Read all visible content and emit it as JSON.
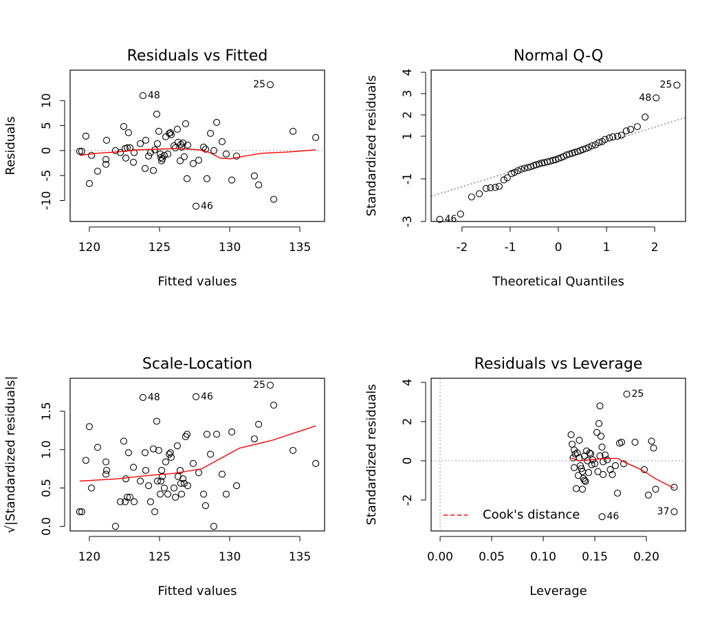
{
  "chart_data": [
    {
      "type": "scatter",
      "title": "Residuals vs Fitted",
      "x_label": "Fitted values",
      "y_label": "Residuals",
      "xlim": [
        118.63,
        136.76
      ],
      "ylim": [
        -14.2,
        16.1
      ],
      "xticks": [
        120,
        125,
        130,
        135
      ],
      "yticks": [
        -10,
        -5,
        0,
        5,
        10
      ],
      "marker_color": "#000000",
      "series": [
        {
          "x": [
            119.31,
            119.46,
            119.75,
            120.0,
            120.15,
            120.59,
            121.18,
            121.18,
            121.23,
            121.86,
            122.21,
            122.45,
            122.55,
            122.6,
            122.7,
            122.79,
            122.89,
            123.14,
            123.19,
            123.63,
            124.02,
            123.97,
            124.22,
            124.36,
            124.56,
            124.66,
            124.8,
            124.85,
            124.95,
            125.05,
            125.1,
            125.15,
            125.2,
            125.34,
            125.44,
            125.59,
            125.69,
            125.78,
            125.83,
            126.03,
            126.13,
            126.27,
            126.32,
            126.47,
            126.52,
            126.57,
            126.67,
            126.76,
            126.86,
            126.96,
            127.01,
            127.4,
            127.79,
            128.14,
            128.28,
            128.38,
            128.63,
            128.87,
            129.07,
            129.46,
            129.75,
            130.15,
            130.49,
            131.76,
            132.06,
            133.14,
            134.51,
            136.13
          ],
          "values": [
            -0.14,
            -0.14,
            2.89,
            -6.6,
            -0.96,
            -4.13,
            -2.75,
            -1.79,
            2.06,
            0.0,
            -0.41,
            4.81,
            0.41,
            -1.51,
            0.55,
            3.58,
            0.55,
            -2.34,
            -0.41,
            1.38,
            2.06,
            -3.58,
            -1.1,
            -0.41,
            -3.99,
            0.14,
            7.29,
            1.38,
            3.85,
            -0.69,
            -1.38,
            -2.06,
            -1.65,
            -0.96,
            2.75,
            -0.69,
            3.44,
            3.58,
            3.16,
            0.96,
            0.55,
            4.26,
            1.65,
            -2.06,
            1.24,
            0.69,
            1.51,
            -1.24,
            5.36,
            -5.64,
            1.1,
            -2.61,
            -1.93,
            0.69,
            0.28,
            -5.64,
            3.44,
            0.0,
            5.64,
            1.79,
            -0.69,
            -5.91,
            -1.1,
            -5.09,
            -6.88,
            -9.76,
            3.85,
            2.61
          ]
        },
        {
          "x": [
            123.82,
            132.89,
            127.6
          ],
          "values": [
            11.0,
            13.2,
            -11.14
          ],
          "labels": [
            "48",
            "25",
            "46"
          ]
        }
      ],
      "smooth": {
        "color": "#ff0000",
        "x": [
          119.31,
          120.49,
          121.96,
          123.43,
          124.9,
          126.37,
          127.84,
          128.58,
          129.31,
          130.05,
          130.78,
          132.25,
          134.22,
          136.13
        ],
        "values": [
          -0.96,
          -0.55,
          -0.28,
          0.14,
          0.28,
          0.41,
          0.14,
          -0.41,
          -1.51,
          -1.65,
          -1.24,
          -0.55,
          -0.28,
          0.14
        ]
      },
      "ref_lines": {
        "h": [
          0
        ]
      }
    },
    {
      "type": "scatter",
      "title": "Normal Q-Q",
      "x_label": "Theoretical Quantiles",
      "y_label": "Standardized residuals",
      "xlim": [
        -2.64,
        2.64
      ],
      "ylim": [
        -3.0,
        4.1
      ],
      "xticks": [
        -2,
        -1,
        0,
        1,
        2
      ],
      "yticks": [
        -3,
        -1,
        1,
        2,
        3,
        4
      ],
      "marker_color": "#000000",
      "series": [
        {
          "x": [
            -2.03,
            -1.8,
            -1.64,
            -1.5,
            -1.41,
            -1.31,
            -1.23,
            -1.13,
            -1.06,
            -0.97,
            -0.91,
            -0.84,
            -0.77,
            -0.7,
            -0.63,
            -0.57,
            -0.51,
            -0.46,
            -0.4,
            -0.34,
            -0.29,
            -0.23,
            -0.17,
            -0.11,
            -0.06,
            0.0,
            0.06,
            0.11,
            0.17,
            0.23,
            0.29,
            0.34,
            0.4,
            0.46,
            0.51,
            0.57,
            0.63,
            0.7,
            0.77,
            0.84,
            0.91,
            0.97,
            1.06,
            1.13,
            1.23,
            1.31,
            1.41,
            1.5,
            1.64,
            1.8
          ],
          "values": [
            -2.65,
            -1.85,
            -1.7,
            -1.45,
            -1.42,
            -1.4,
            -1.35,
            -1.05,
            -0.95,
            -0.75,
            -0.7,
            -0.62,
            -0.55,
            -0.5,
            -0.47,
            -0.43,
            -0.38,
            -0.34,
            -0.3,
            -0.26,
            -0.24,
            -0.2,
            -0.17,
            -0.13,
            -0.1,
            -0.05,
            0.0,
            0.05,
            0.12,
            0.16,
            0.2,
            0.24,
            0.28,
            0.33,
            0.38,
            0.42,
            0.48,
            0.55,
            0.6,
            0.7,
            0.75,
            0.85,
            0.92,
            0.97,
            1.0,
            1.05,
            1.25,
            1.32,
            1.45,
            1.9
          ]
        },
        {
          "x": [
            -2.46,
            2.03,
            2.46
          ],
          "values": [
            -2.9,
            2.8,
            3.4
          ],
          "labels": [
            "46",
            "48",
            "25"
          ]
        }
      ],
      "ref_line": {
        "intercept": 0.03,
        "slope": 0.7
      }
    },
    {
      "type": "scatter",
      "title": "Scale-Location",
      "x_label": "Fitted values",
      "y_label": "√|Standardized residuals|",
      "xlim": [
        118.63,
        136.76
      ],
      "ylim": [
        -0.06,
        1.93
      ],
      "xticks": [
        120,
        125,
        130,
        135
      ],
      "yticks": [
        {
          "value": 0,
          "label": "0.0"
        },
        0.5,
        {
          "value": 1,
          "label": "1.0"
        },
        1.5
      ],
      "marker_color": "#000000",
      "series": [
        {
          "x": [
            119.31,
            119.46,
            119.75,
            120.0,
            120.15,
            120.59,
            121.18,
            121.18,
            121.23,
            121.86,
            122.21,
            122.45,
            122.55,
            122.6,
            122.7,
            122.79,
            122.89,
            123.14,
            123.19,
            123.63,
            124.02,
            123.97,
            124.22,
            124.36,
            124.56,
            124.66,
            124.8,
            124.85,
            124.95,
            125.05,
            125.1,
            125.15,
            125.2,
            125.34,
            125.44,
            125.59,
            125.69,
            125.78,
            125.83,
            126.03,
            126.13,
            126.27,
            126.32,
            126.47,
            126.52,
            126.57,
            126.67,
            126.76,
            126.86,
            126.96,
            127.01,
            127.4,
            127.79,
            128.14,
            128.28,
            128.38,
            128.63,
            128.87,
            129.07,
            129.46,
            129.75,
            130.15,
            130.49,
            131.76,
            132.06,
            133.14,
            134.51,
            136.13
          ],
          "values": [
            0.19,
            0.19,
            0.86,
            1.3,
            0.5,
            1.03,
            0.84,
            0.68,
            0.73,
            0.0,
            0.32,
            1.11,
            0.32,
            0.62,
            0.38,
            0.96,
            0.38,
            0.77,
            0.32,
            0.59,
            0.73,
            0.96,
            0.53,
            0.32,
            1.01,
            0.19,
            1.37,
            0.59,
            0.99,
            0.42,
            0.59,
            0.73,
            0.65,
            0.5,
            0.84,
            0.42,
            0.94,
            0.96,
            0.9,
            0.5,
            0.38,
            1.05,
            0.65,
            0.73,
            0.56,
            0.42,
            0.62,
            0.56,
            1.17,
            1.2,
            0.53,
            0.82,
            0.7,
            0.42,
            0.27,
            1.2,
            0.94,
            0.0,
            1.2,
            0.68,
            0.42,
            1.23,
            0.53,
            1.14,
            1.33,
            1.58,
            0.99,
            0.82
          ]
        },
        {
          "x": [
            123.82,
            132.89,
            127.6
          ],
          "values": [
            1.68,
            1.84,
            1.69
          ],
          "labels": [
            "48",
            "25",
            "46"
          ]
        }
      ],
      "smooth": {
        "color": "#ff0000",
        "x": [
          119.31,
          122,
          124,
          126,
          128,
          129.5,
          130.7,
          133,
          136.13
        ],
        "values": [
          0.59,
          0.62,
          0.66,
          0.69,
          0.75,
          0.9,
          1.02,
          1.12,
          1.31
        ]
      }
    },
    {
      "type": "scatter",
      "title": "Residuals vs Leverage",
      "x_label": "Leverage",
      "y_label": "Standardized residuals",
      "xlim": [
        -0.0087,
        0.238
      ],
      "ylim": [
        -3.58,
        4.21
      ],
      "xticks": [
        {
          "value": 0,
          "label": "0.00"
        },
        0.05,
        {
          "value": 0.1,
          "label": "0.10"
        },
        0.15,
        {
          "value": 0.2,
          "label": "0.20"
        }
      ],
      "yticks": [
        -2,
        0,
        2,
        4
      ],
      "marker_color": "#000000",
      "series": [
        {
          "x": [
            0.127,
            0.128,
            0.13,
            0.131,
            0.129,
            0.13,
            0.132,
            0.135,
            0.135,
            0.136,
            0.137,
            0.138,
            0.139,
            0.14,
            0.141,
            0.138,
            0.14,
            0.142,
            0.143,
            0.145,
            0.147,
            0.148,
            0.15,
            0.152,
            0.153,
            0.154,
            0.155,
            0.155,
            0.156,
            0.157,
            0.158,
            0.158,
            0.16,
            0.162,
            0.165,
            0.167,
            0.17,
            0.172,
            0.174,
            0.176,
            0.178,
            0.189,
            0.198,
            0.202,
            0.205,
            0.207,
            0.209,
            0.227,
            0.133,
            0.134,
            0.144,
            0.146
          ],
          "values": [
            1.33,
            0.85,
            0.55,
            0.35,
            0.15,
            -0.35,
            -1.42,
            1.05,
            0.15,
            -0.25,
            -0.4,
            -0.55,
            -0.9,
            -1.0,
            -1.05,
            -1.45,
            0.25,
            0.5,
            0.0,
            0.4,
            -0.2,
            0.05,
            -0.15,
            1.45,
            -0.55,
            1.9,
            2.8,
            0.25,
            1.25,
            0.7,
            -0.05,
            -0.7,
            0.3,
            0.05,
            -0.45,
            -0.7,
            -0.25,
            -1.65,
            0.9,
            0.95,
            -0.15,
            0.95,
            -0.45,
            -1.75,
            1.0,
            0.65,
            -1.45,
            -1.35,
            0.4,
            -0.75,
            -0.6,
            0.35
          ]
        },
        {
          "x": [
            0.181,
            0.157,
            0.227
          ],
          "values": [
            3.4,
            -2.85,
            -2.6
          ],
          "labels": [
            "25",
            "46",
            "37"
          ]
        }
      ],
      "smooth": {
        "color": "#ff0000",
        "x": [
          0.127,
          0.135,
          0.145,
          0.155,
          0.165,
          0.172,
          0.18,
          0.195,
          0.21,
          0.227
        ],
        "values": [
          0.15,
          0.0,
          0.05,
          0.1,
          0.12,
          0.12,
          -0.1,
          -0.45,
          -0.95,
          -1.4
        ]
      },
      "ref_lines": {
        "h": [
          0
        ],
        "v": [
          0
        ]
      },
      "legend": {
        "labels": [
          "Cook's distance"
        ],
        "color": "#ff0000",
        "position": "bottomleft"
      }
    }
  ]
}
